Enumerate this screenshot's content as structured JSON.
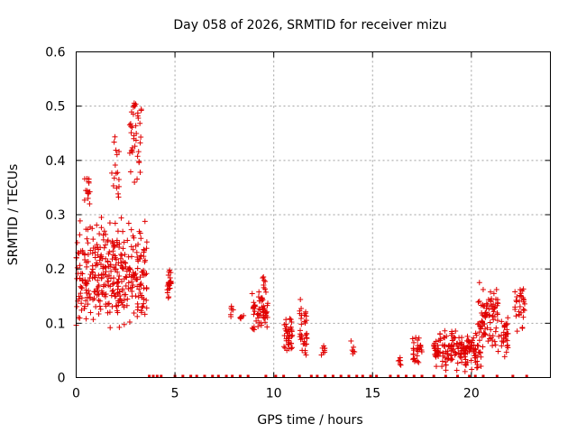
{
  "chart_data": {
    "type": "scatter",
    "title": "Day 058 of 2026, SRMTID for receiver mizu",
    "xlabel": "GPS time / hours",
    "ylabel": "SRMTID / TECUs",
    "xlim": [
      0,
      24
    ],
    "ylim": [
      0,
      0.6
    ],
    "xticks": [
      0,
      5,
      10,
      15,
      20
    ],
    "xtick_labels": [
      "0",
      "5",
      "10",
      "15",
      "20"
    ],
    "yticks": [
      0,
      0.1,
      0.2,
      0.3,
      0.4,
      0.5,
      0.6
    ],
    "ytick_labels": [
      "0",
      "0.1",
      "0.2",
      "0.3",
      "0.4",
      "0.5",
      "0.6"
    ],
    "grid": true,
    "marker": "plus",
    "color": "#e00000",
    "series": [
      {
        "name": "SRMTID",
        "clusters": [
          {
            "x": [
              0.0,
              3.6
            ],
            "y": [
              0.08,
              0.3
            ],
            "n": 360,
            "seed": 1
          },
          {
            "x": [
              0.4,
              0.7
            ],
            "y": [
              0.3,
              0.41
            ],
            "n": 14,
            "seed": 2
          },
          {
            "x": [
              1.8,
              2.2
            ],
            "y": [
              0.3,
              0.46
            ],
            "n": 16,
            "seed": 3
          },
          {
            "x": [
              2.7,
              3.3
            ],
            "y": [
              0.33,
              0.55
            ],
            "n": 40,
            "seed": 4
          },
          {
            "x": [
              4.6,
              4.8
            ],
            "y": [
              0.14,
              0.21
            ],
            "n": 22,
            "seed": 5
          },
          {
            "x": [
              7.8,
              8.0
            ],
            "y": [
              0.1,
              0.14
            ],
            "n": 6,
            "seed": 6
          },
          {
            "x": [
              8.2,
              8.5
            ],
            "y": [
              0.1,
              0.12
            ],
            "n": 5,
            "seed": 7
          },
          {
            "x": [
              8.9,
              9.7
            ],
            "y": [
              0.07,
              0.17
            ],
            "n": 60,
            "seed": 8
          },
          {
            "x": [
              9.4,
              9.6
            ],
            "y": [
              0.15,
              0.2
            ],
            "n": 6,
            "seed": 9
          },
          {
            "x": [
              10.5,
              11.0
            ],
            "y": [
              0.03,
              0.12
            ],
            "n": 40,
            "seed": 10
          },
          {
            "x": [
              11.3,
              11.7
            ],
            "y": [
              0.03,
              0.15
            ],
            "n": 35,
            "seed": 11
          },
          {
            "x": [
              12.4,
              12.6
            ],
            "y": [
              0.04,
              0.07
            ],
            "n": 8,
            "seed": 12
          },
          {
            "x": [
              13.9,
              14.1
            ],
            "y": [
              0.04,
              0.07
            ],
            "n": 6,
            "seed": 13
          },
          {
            "x": [
              16.3,
              16.5
            ],
            "y": [
              0.02,
              0.04
            ],
            "n": 6,
            "seed": 14
          },
          {
            "x": [
              17.0,
              17.5
            ],
            "y": [
              0.02,
              0.09
            ],
            "n": 30,
            "seed": 15
          },
          {
            "x": [
              18.1,
              20.5
            ],
            "y": [
              0.01,
              0.09
            ],
            "n": 170,
            "seed": 16
          },
          {
            "x": [
              20.3,
              21.4
            ],
            "y": [
              0.04,
              0.18
            ],
            "n": 90,
            "seed": 17
          },
          {
            "x": [
              21.5,
              21.9
            ],
            "y": [
              0.03,
              0.12
            ],
            "n": 30,
            "seed": 18
          },
          {
            "x": [
              22.2,
              22.7
            ],
            "y": [
              0.08,
              0.18
            ],
            "n": 30,
            "seed": 19
          }
        ],
        "zero_x": [
          3.7,
          3.9,
          4.1,
          4.3,
          5.0,
          5.4,
          5.8,
          6.1,
          6.5,
          6.9,
          7.2,
          7.6,
          7.9,
          8.3,
          8.7,
          9.6,
          10.1,
          10.5,
          11.3,
          11.9,
          12.2,
          12.6,
          13.0,
          13.4,
          13.8,
          14.2,
          14.5,
          14.9,
          15.2,
          15.9,
          16.3,
          16.7,
          17.1,
          17.5,
          18.1,
          18.7,
          19.3,
          19.9,
          20.2,
          20.6,
          21.3,
          22.1,
          22.8
        ]
      }
    ]
  }
}
